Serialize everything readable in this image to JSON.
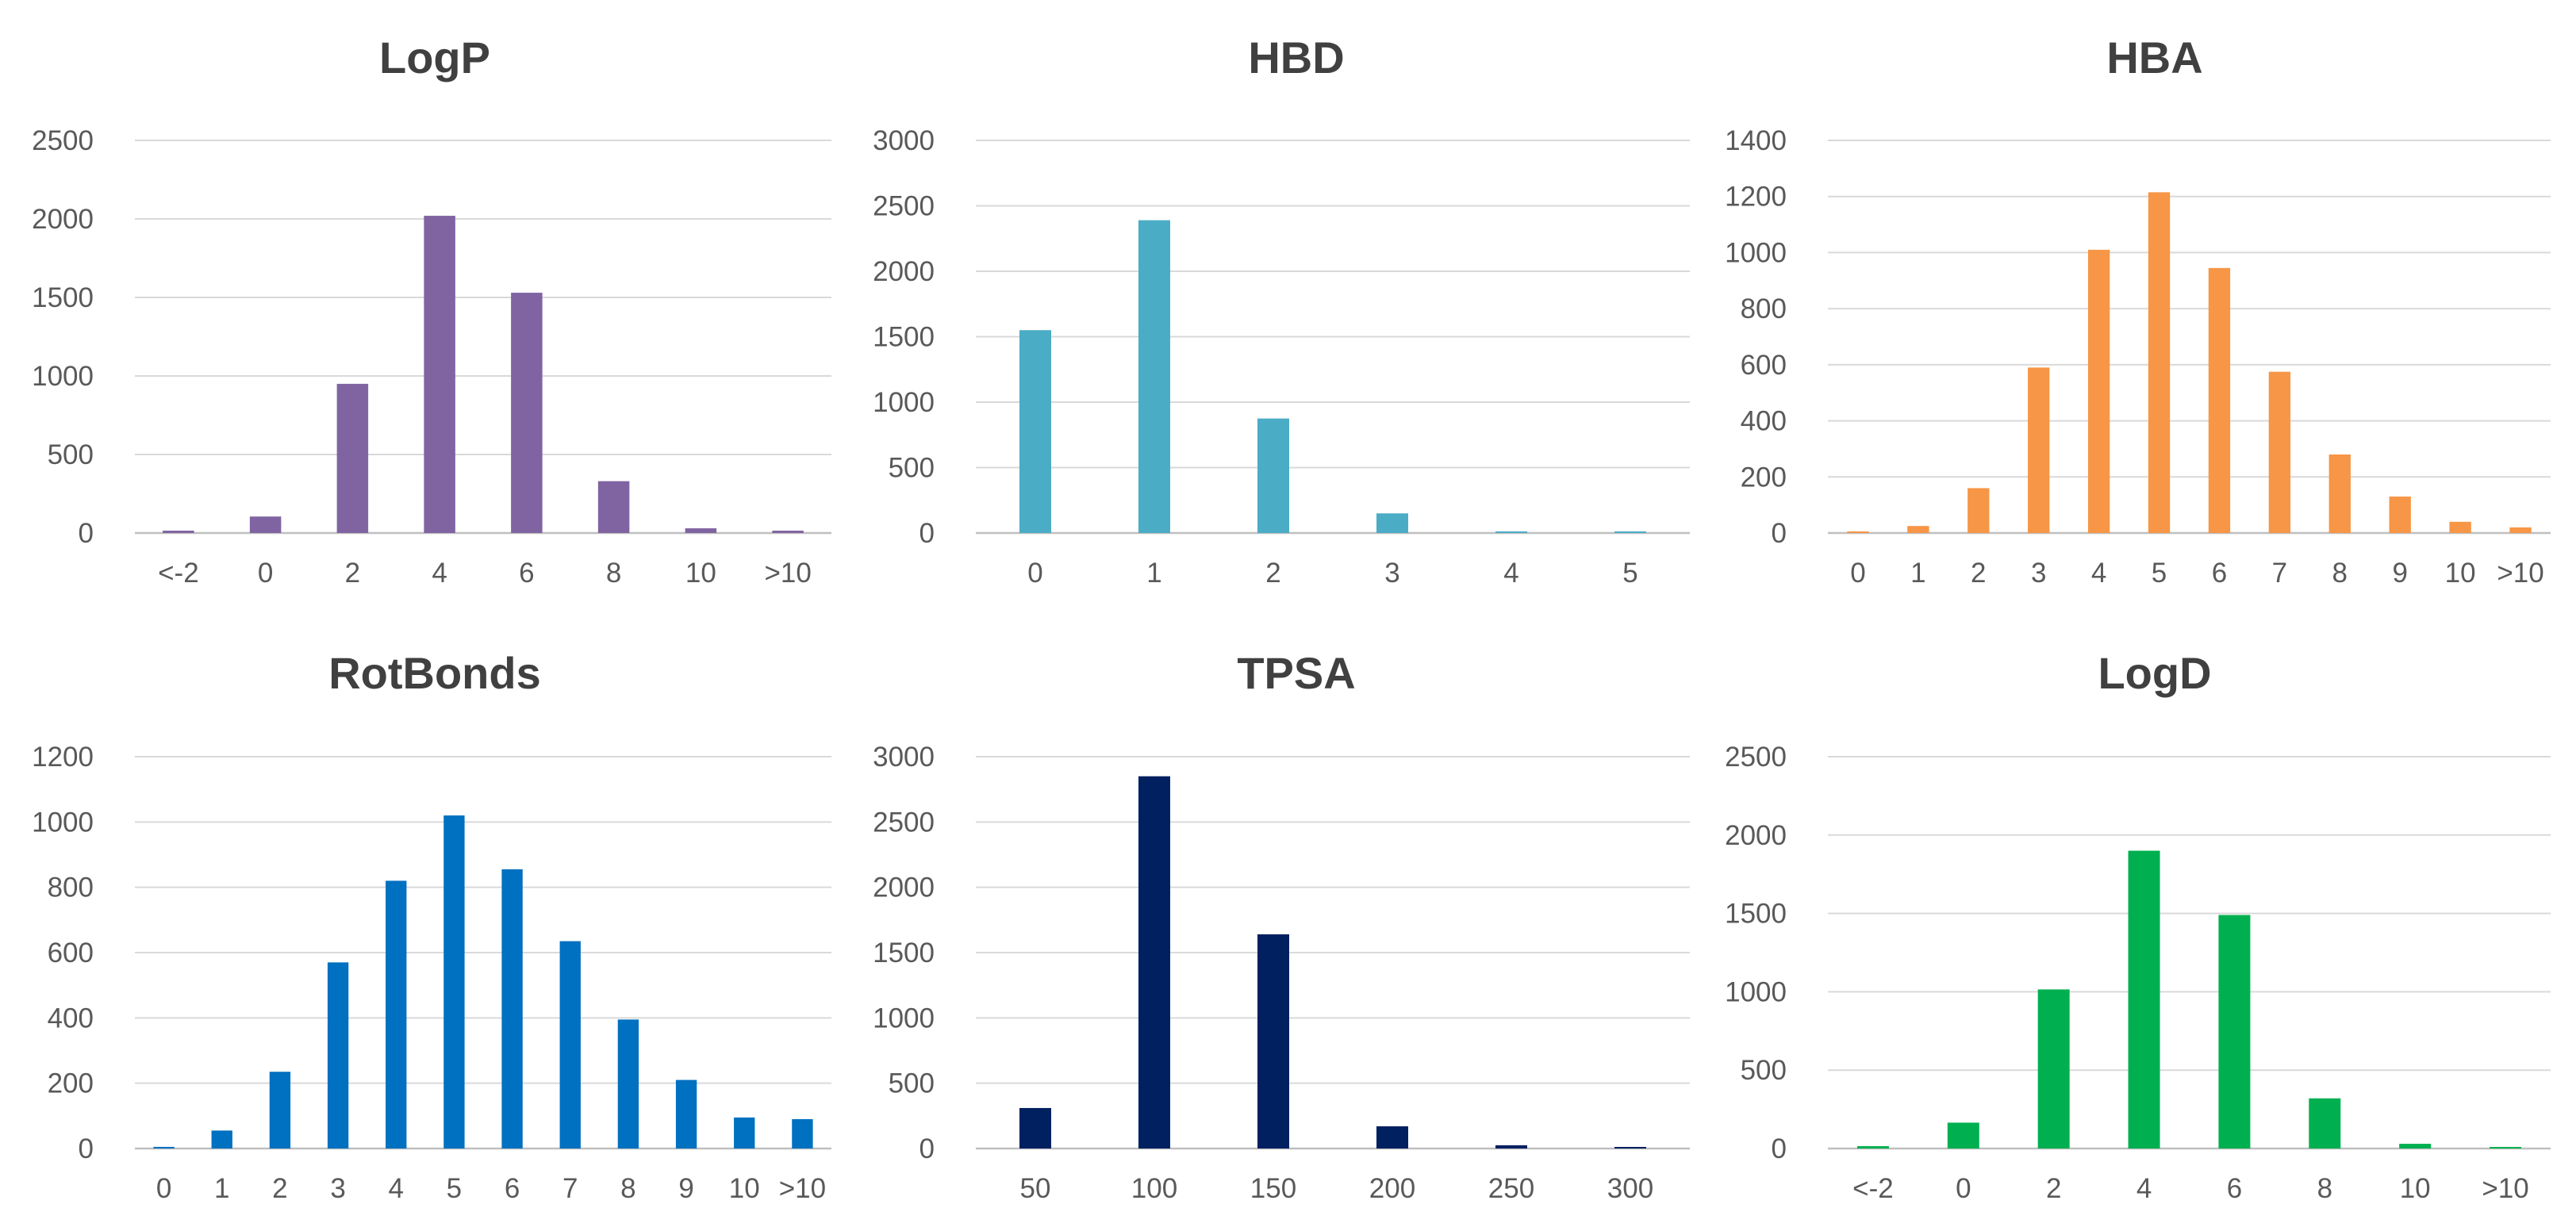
{
  "chart_data": [
    {
      "type": "bar",
      "title": "LogP",
      "color": "#8064A2",
      "categories": [
        "<-2",
        "0",
        "2",
        "4",
        "6",
        "8",
        "10",
        ">10"
      ],
      "values": [
        15,
        105,
        950,
        2020,
        1530,
        330,
        30,
        15
      ],
      "ylim": [
        0,
        2500
      ],
      "yticks": [
        0,
        500,
        1000,
        1500,
        2000,
        2500
      ],
      "xlabel": "",
      "ylabel": "",
      "grid": true,
      "legend": "none"
    },
    {
      "type": "bar",
      "title": "HBD",
      "color": "#4BACC6",
      "categories": [
        "0",
        "1",
        "2",
        "3",
        "4",
        "5"
      ],
      "values": [
        1550,
        2390,
        875,
        150,
        10,
        5
      ],
      "ylim": [
        0,
        3000
      ],
      "yticks": [
        0,
        500,
        1000,
        1500,
        2000,
        2500,
        3000
      ],
      "xlabel": "",
      "ylabel": "",
      "grid": true,
      "legend": "none"
    },
    {
      "type": "bar",
      "title": "HBA",
      "color": "#F79646",
      "categories": [
        "0",
        "1",
        "2",
        "3",
        "4",
        "5",
        "6",
        "7",
        "8",
        "9",
        "10",
        ">10"
      ],
      "values": [
        5,
        25,
        160,
        590,
        1010,
        1215,
        945,
        575,
        280,
        130,
        40,
        20
      ],
      "ylim": [
        0,
        1400
      ],
      "yticks": [
        0,
        200,
        400,
        600,
        800,
        1000,
        1200,
        1400
      ],
      "xlabel": "",
      "ylabel": "",
      "grid": true,
      "legend": "none"
    },
    {
      "type": "bar",
      "title": "RotBonds",
      "color": "#0070C0",
      "categories": [
        "0",
        "1",
        "2",
        "3",
        "4",
        "5",
        "6",
        "7",
        "8",
        "9",
        "10",
        ">10"
      ],
      "values": [
        5,
        55,
        235,
        570,
        820,
        1020,
        855,
        635,
        395,
        210,
        95,
        90
      ],
      "ylim": [
        0,
        1200
      ],
      "yticks": [
        0,
        200,
        400,
        600,
        800,
        1000,
        1200
      ],
      "xlabel": "",
      "ylabel": "",
      "grid": true,
      "legend": "none"
    },
    {
      "type": "bar",
      "title": "TPSA",
      "color": "#002060",
      "categories": [
        "50",
        "100",
        "150",
        "200",
        "250",
        "300"
      ],
      "values": [
        310,
        2850,
        1640,
        170,
        25,
        10
      ],
      "ylim": [
        0,
        3000
      ],
      "yticks": [
        0,
        500,
        1000,
        1500,
        2000,
        2500,
        3000
      ],
      "xlabel": "",
      "ylabel": "",
      "grid": true,
      "legend": "none"
    },
    {
      "type": "bar",
      "title": "LogD",
      "color": "#00B050",
      "categories": [
        "<-2",
        "0",
        "2",
        "4",
        "6",
        "8",
        "10",
        ">10"
      ],
      "values": [
        15,
        165,
        1015,
        1900,
        1490,
        320,
        30,
        10
      ],
      "ylim": [
        0,
        2500
      ],
      "yticks": [
        0,
        500,
        1000,
        1500,
        2000,
        2500
      ],
      "xlabel": "",
      "ylabel": "",
      "grid": true,
      "legend": "none"
    }
  ]
}
